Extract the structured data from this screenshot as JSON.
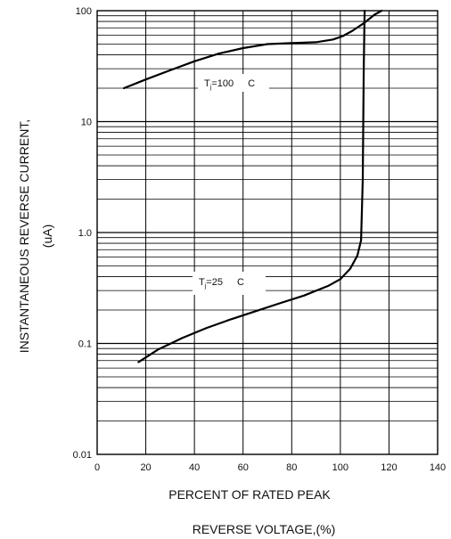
{
  "chart_data": {
    "type": "line",
    "xlabel_lines": [
      "PERCENT OF RATED PEAK",
      "REVERSE VOLTAGE,(%)"
    ],
    "ylabel_lines": [
      "INSTANTANEOUS REVERSE CURRENT,",
      "(uA)"
    ],
    "x_ticks": [
      {
        "value": 0,
        "label": "0"
      },
      {
        "value": 20,
        "label": "20"
      },
      {
        "value": 40,
        "label": "40"
      },
      {
        "value": 60,
        "label": "60"
      },
      {
        "value": 80,
        "label": "80"
      },
      {
        "value": 100,
        "label": "100"
      },
      {
        "value": 120,
        "label": "120"
      },
      {
        "value": 140,
        "label": "140"
      }
    ],
    "y_ticks": [
      {
        "value": 0.01,
        "label": "0.01"
      },
      {
        "value": 0.1,
        "label": "0.1"
      },
      {
        "value": 1,
        "label": "1.0"
      },
      {
        "value": 10,
        "label": "10"
      },
      {
        "value": 100,
        "label": "100"
      }
    ],
    "xlim": [
      0,
      140
    ],
    "ylim": [
      0.01,
      100
    ],
    "y_scale": "log",
    "grid": true,
    "series": [
      {
        "label_main": "T",
        "label_sub": "j",
        "label_rest": "=100",
        "label_unit": "C",
        "color": "#000000",
        "x": [
          11,
          20,
          30,
          40,
          50,
          60,
          70,
          80,
          90,
          97,
          101,
          105,
          110,
          114,
          117
        ],
        "y": [
          20,
          24,
          29,
          35,
          41,
          46,
          50,
          51,
          52,
          55,
          59,
          66,
          78,
          92,
          100
        ]
      },
      {
        "label_main": "T",
        "label_sub": "j",
        "label_rest": "=25",
        "label_unit": "C",
        "color": "#000000",
        "x": [
          17,
          25,
          35,
          45,
          55,
          65,
          75,
          85,
          95,
          100,
          104,
          107,
          108.5,
          109.2,
          109.6,
          110
        ],
        "y": [
          0.068,
          0.088,
          0.112,
          0.138,
          0.165,
          0.195,
          0.23,
          0.27,
          0.33,
          0.38,
          0.47,
          0.62,
          0.85,
          3,
          30,
          100
        ]
      }
    ]
  }
}
